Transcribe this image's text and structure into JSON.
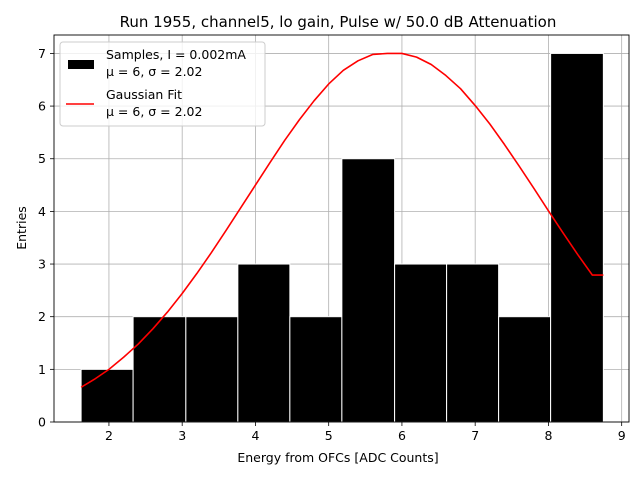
{
  "chart_data": {
    "type": "bar",
    "title": "Run 1955, channel5, lo gain, Pulse w/ 50.0 dB Attenuation",
    "xlabel": "Energy from OFCs [ADC Counts]",
    "ylabel": "Entries",
    "xlim": [
      1.25,
      9.1
    ],
    "ylim": [
      0,
      7.35
    ],
    "xticks": [
      "2",
      "3",
      "4",
      "5",
      "6",
      "7",
      "8",
      "9"
    ],
    "yticks": [
      "0",
      "1",
      "2",
      "3",
      "4",
      "5",
      "6",
      "7"
    ],
    "grid": true,
    "legend_position": "top-left",
    "histogram": {
      "name": "Samples, I = 0.002mA",
      "name_line2": "μ = 6, σ = 2.02",
      "color": "#000000",
      "edgecolor": "#ffffff",
      "bins": [
        {
          "x0": 1.62,
          "x1": 2.33,
          "count": 1
        },
        {
          "x0": 2.33,
          "x1": 3.05,
          "count": 2
        },
        {
          "x0": 3.05,
          "x1": 3.76,
          "count": 2
        },
        {
          "x0": 3.76,
          "x1": 4.47,
          "count": 3
        },
        {
          "x0": 4.47,
          "x1": 5.18,
          "count": 2
        },
        {
          "x0": 5.18,
          "x1": 5.9,
          "count": 5
        },
        {
          "x0": 5.9,
          "x1": 6.61,
          "count": 3
        },
        {
          "x0": 6.61,
          "x1": 7.32,
          "count": 3
        },
        {
          "x0": 7.32,
          "x1": 8.03,
          "count": 2
        },
        {
          "x0": 8.03,
          "x1": 8.75,
          "count": 7
        }
      ]
    },
    "fit": {
      "name": "Gaussian Fit",
      "name_line2": "μ = 6, σ = 2.02",
      "color": "#ff0000",
      "x": [
        1.62,
        1.8,
        2.0,
        2.2,
        2.4,
        2.6,
        2.8,
        3.0,
        3.2,
        3.4,
        3.6,
        3.8,
        4.0,
        4.2,
        4.4,
        4.6,
        4.8,
        5.0,
        5.2,
        5.4,
        5.6,
        5.8,
        6.0,
        6.2,
        6.4,
        6.6,
        6.8,
        7.0,
        7.2,
        7.4,
        7.6,
        7.8,
        8.0,
        8.2,
        8.4,
        8.6,
        8.75
      ],
      "y": [
        0.66,
        0.81,
        1.0,
        1.23,
        1.48,
        1.77,
        2.09,
        2.44,
        2.82,
        3.22,
        3.64,
        4.07,
        4.5,
        4.93,
        5.35,
        5.74,
        6.1,
        6.42,
        6.68,
        6.86,
        6.98,
        7.0,
        7.0,
        6.93,
        6.79,
        6.58,
        6.33,
        6.01,
        5.66,
        5.27,
        4.86,
        4.44,
        4.01,
        3.59,
        3.18,
        2.79,
        2.79
      ]
    }
  }
}
